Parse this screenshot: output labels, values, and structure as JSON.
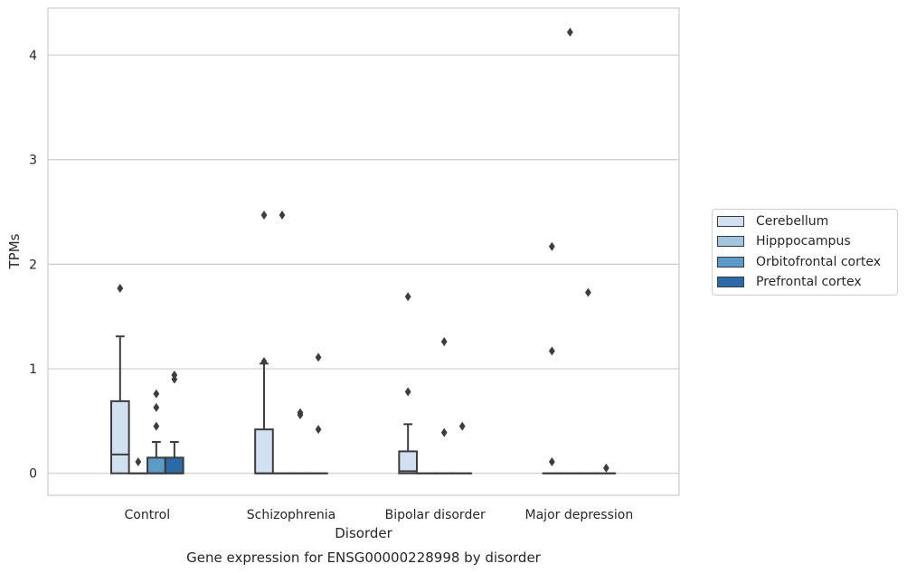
{
  "chart_data": {
    "type": "box",
    "title": "Gene expression for ENSG00000228998 by disorder",
    "xlabel": "Disorder",
    "ylabel": "TPMs",
    "ylim": [
      -0.21,
      4.45
    ],
    "yticks": [
      0,
      1,
      2,
      3,
      4
    ],
    "grid": "horizontal",
    "legend_position": "right",
    "categories": [
      "Control",
      "Schizophrenia",
      "Bipolar disorder",
      "Major depression"
    ],
    "series": [
      {
        "name": "Cerebellum",
        "color": "#d2e1f1",
        "boxes": [
          {
            "whislo": 0,
            "q1": 0,
            "med": 0.18,
            "q3": 0.69,
            "whishi": 1.31,
            "fliers": [
              1.77
            ]
          },
          {
            "whislo": 0,
            "q1": 0,
            "med": 0,
            "q3": 0.42,
            "whishi": 1.05,
            "fliers": [
              1.07,
              2.47
            ]
          },
          {
            "whislo": 0,
            "q1": 0,
            "med": 0.02,
            "q3": 0.21,
            "whishi": 0.47,
            "fliers": [
              0.78,
              1.69
            ]
          },
          {
            "whislo": 0,
            "q1": 0,
            "med": 0,
            "q3": 0,
            "whishi": 0,
            "fliers": [
              0.11,
              1.17,
              2.17
            ]
          }
        ]
      },
      {
        "name": "Hipppocampus",
        "color": "#a2c6de",
        "boxes": [
          {
            "whislo": 0,
            "q1": 0,
            "med": 0,
            "q3": 0,
            "whishi": 0,
            "fliers": [
              0.11
            ]
          },
          {
            "whislo": 0,
            "q1": 0,
            "med": 0,
            "q3": 0,
            "whishi": 0,
            "fliers": [
              2.47
            ]
          },
          {
            "whislo": 0,
            "q1": 0,
            "med": 0,
            "q3": 0,
            "whishi": 0,
            "fliers": []
          },
          {
            "whislo": 0,
            "q1": 0,
            "med": 0,
            "q3": 0,
            "whishi": 0,
            "fliers": [
              4.22
            ]
          }
        ]
      },
      {
        "name": "Orbitofrontal cortex",
        "color": "#5c9ac8",
        "boxes": [
          {
            "whislo": 0,
            "q1": 0,
            "med": 0,
            "q3": 0.15,
            "whishi": 0.3,
            "fliers": [
              0.45,
              0.63,
              0.76
            ]
          },
          {
            "whislo": 0,
            "q1": 0,
            "med": 0,
            "q3": 0,
            "whishi": 0,
            "fliers": [
              0.56,
              0.58
            ]
          },
          {
            "whislo": 0,
            "q1": 0,
            "med": 0,
            "q3": 0,
            "whishi": 0,
            "fliers": [
              0.39,
              1.26
            ]
          },
          {
            "whislo": 0,
            "q1": 0,
            "med": 0,
            "q3": 0,
            "whishi": 0,
            "fliers": [
              1.73
            ]
          }
        ]
      },
      {
        "name": "Prefrontal cortex",
        "color": "#2b6aa8",
        "boxes": [
          {
            "whislo": 0,
            "q1": 0,
            "med": 0,
            "q3": 0.15,
            "whishi": 0.3,
            "fliers": [
              0.9,
              0.94
            ]
          },
          {
            "whislo": 0,
            "q1": 0,
            "med": 0,
            "q3": 0,
            "whishi": 0,
            "fliers": [
              0.42,
              1.11
            ]
          },
          {
            "whislo": 0,
            "q1": 0,
            "med": 0,
            "q3": 0,
            "whishi": 0,
            "fliers": [
              0.45
            ]
          },
          {
            "whislo": 0,
            "q1": 0,
            "med": 0,
            "q3": 0,
            "whishi": 0,
            "fliers": [
              0.05
            ]
          }
        ]
      }
    ]
  }
}
